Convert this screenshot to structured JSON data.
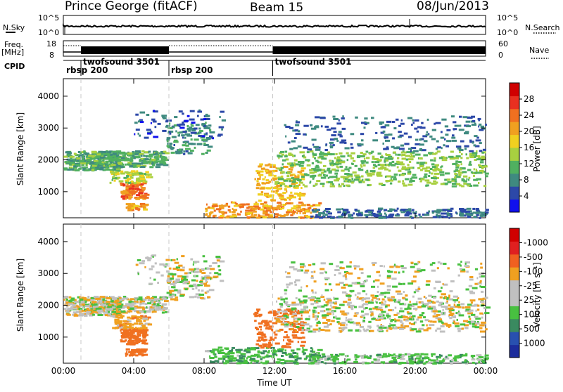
{
  "header": {
    "station": "Prince George (fitACF)",
    "beam": "Beam 15",
    "date": "08/Jun/2013"
  },
  "top_panels": {
    "nsky_label": "N.Sky",
    "nsearch_label": "N.Search",
    "nsky_ticks": [
      "10^5",
      "10^0"
    ],
    "nsearch_ticks": [
      "10^5",
      "10^0"
    ],
    "freq_label": "Freq.",
    "freq_unit": "[MHz]",
    "freq_ticks": [
      "18",
      "8"
    ],
    "nave_label": "Nave",
    "nave_ticks": [
      "60",
      "0"
    ],
    "cpid_label": "CPID",
    "cpid_segments": [
      {
        "name": "rbsp 200",
        "start_hr": 0,
        "end_hr": 1.0
      },
      {
        "name": "twofsound 3501",
        "start_hr": 1.0,
        "end_hr": 6.0
      },
      {
        "name": "rbsp 200",
        "start_hr": 6.0,
        "end_hr": 11.9
      },
      {
        "name": "twofsound 3501",
        "start_hr": 11.9,
        "end_hr": 24.0
      }
    ]
  },
  "chart_data": [
    {
      "type": "heatmap",
      "panel": "power",
      "ylabel": "Slant Range [km]",
      "xlabel": "Time UT",
      "xlim": [
        0,
        24
      ],
      "ylim": [
        180,
        4550
      ],
      "y_ticks": [
        1000,
        2000,
        3000,
        4000
      ],
      "x_ticks": [
        "00:00",
        "04:00",
        "08:00",
        "12:00",
        "16:00",
        "20:00",
        "00:00"
      ],
      "colorbar": {
        "label": "Power [dB]",
        "ticks": [
          4,
          8,
          12,
          16,
          20,
          24,
          28
        ],
        "colors": [
          "#1010ee",
          "#2c48a8",
          "#3f8a80",
          "#50b060",
          "#a8d040",
          "#f0d020",
          "#f0a020",
          "#f07020",
          "#e83020",
          "#d00000"
        ]
      },
      "features": [
        {
          "desc": "backscatter band",
          "t": [
            0.0,
            6.0
          ],
          "range_km": [
            1600,
            2400
          ],
          "power_db": 12
        },
        {
          "desc": "strong echoes",
          "t": [
            3.5,
            4.5
          ],
          "range_km": [
            800,
            1300
          ],
          "power_db": 24
        },
        {
          "desc": "evening band",
          "t": [
            12.0,
            24.0
          ],
          "range_km": [
            1200,
            2200
          ],
          "power_db": 12
        },
        {
          "desc": "ground scatter near range",
          "t": [
            8.0,
            14.0
          ],
          "range_km": [
            200,
            700
          ],
          "power_db": 20
        }
      ]
    },
    {
      "type": "heatmap",
      "panel": "velocity",
      "ylabel": "Slant Range [km]",
      "xlabel": "Time UT",
      "xlim": [
        0,
        24
      ],
      "ylim": [
        180,
        4550
      ],
      "y_ticks": [
        1000,
        2000,
        3000,
        4000
      ],
      "x_ticks": [
        "00:00",
        "04:00",
        "08:00",
        "12:00",
        "16:00",
        "20:00",
        "00:00"
      ],
      "colorbar": {
        "label": "Velocity [m s⁻¹]",
        "ticks": [
          "1000",
          "500",
          "100",
          "25",
          "-25",
          "-100",
          "-500",
          "-1000"
        ],
        "colors": [
          "#1c2c9c",
          "#2850b0",
          "#3a8a60",
          "#48c040",
          "#c0c0c0",
          "#c0c0c0",
          "#f0a020",
          "#f06020",
          "#e02020",
          "#d00000"
        ]
      },
      "features": [
        {
          "desc": "mostly low velocity (grey)",
          "t": [
            0.0,
            24.0
          ],
          "range_km": [
            1500,
            2500
          ],
          "velocity": 0
        },
        {
          "desc": "away velocities (orange)",
          "t": [
            3.5,
            4.5
          ],
          "range_km": [
            400,
            1300
          ],
          "velocity": -300
        },
        {
          "desc": "away velocities (orange)",
          "t": [
            11.5,
            13.5
          ],
          "range_km": [
            800,
            1800
          ],
          "velocity": -300
        },
        {
          "desc": "near-range towards velocities (green)",
          "t": [
            8.0,
            22.0
          ],
          "range_km": [
            200,
            600
          ],
          "velocity": 100
        }
      ]
    }
  ]
}
